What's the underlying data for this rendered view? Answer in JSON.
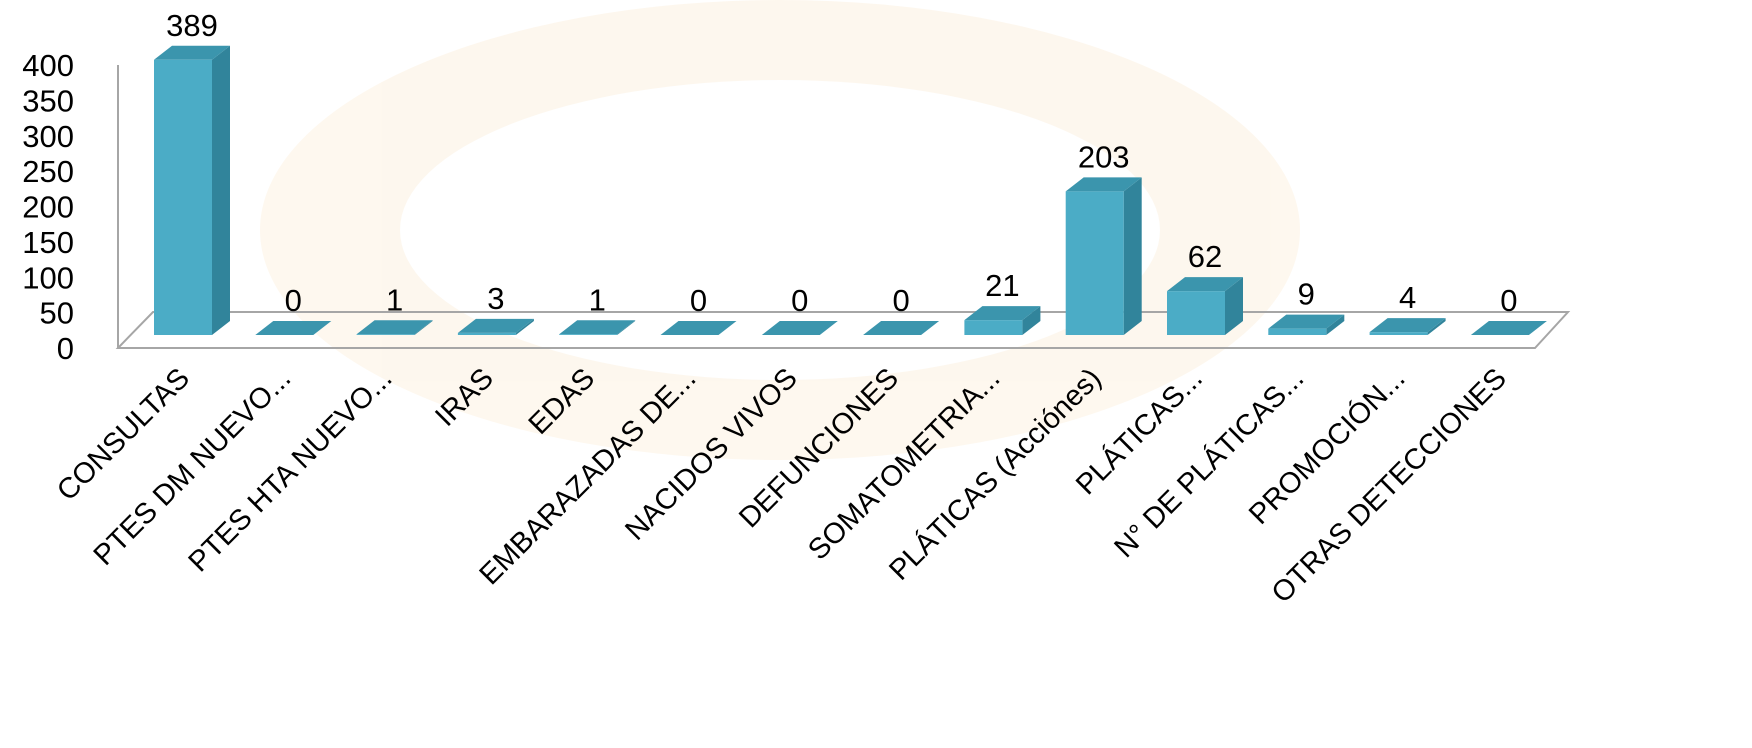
{
  "chart_data": {
    "type": "bar3d",
    "categories": [
      "CONSULTAS",
      "PTES DM NUEVO...",
      "PTES HTA NUEVO...",
      "IRAS",
      "EDAS",
      "EMBARAZADAS DE...",
      "NACIDOS VIVOS",
      "DEFUNCIONES",
      "SOMATOMETRIA...",
      "PLÁTICAS (Acciónes)",
      "PLÁTICAS...",
      "N° DE PLÁTICAS...",
      "PROMOCIÓN...",
      "OTRAS DETECCIONES"
    ],
    "values": [
      389,
      0,
      1,
      3,
      1,
      0,
      0,
      0,
      21,
      203,
      62,
      9,
      4,
      0
    ],
    "color": "#4bacc6",
    "ylim": [
      0,
      400
    ],
    "yticks": [
      0,
      50,
      100,
      150,
      200,
      250,
      300,
      350,
      400
    ]
  }
}
